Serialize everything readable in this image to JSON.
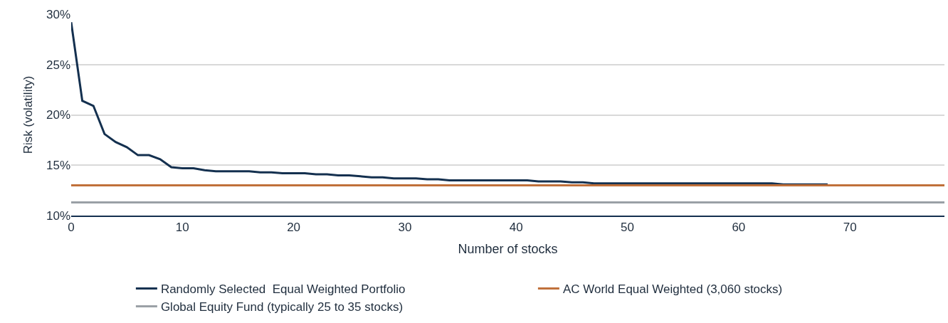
{
  "chart_data": {
    "type": "line",
    "xlabel": "Number of stocks",
    "ylabel": "Risk (volatility)",
    "xlim": [
      0,
      78.5
    ],
    "xticks": [
      0,
      10,
      20,
      30,
      40,
      50,
      60,
      70
    ],
    "ylim": [
      10,
      30
    ],
    "yticks": [
      {
        "value": 10,
        "label": "10%"
      },
      {
        "value": 15,
        "label": "15%"
      },
      {
        "value": 20,
        "label": "20%"
      },
      {
        "value": 25,
        "label": "25%"
      },
      {
        "value": 30,
        "label": "30%"
      }
    ],
    "grid": "y",
    "legend": "bottom",
    "marker": "none",
    "line_style": "solid",
    "series": [
      {
        "name": "Randomly Selected  Equal Weighted Portfolio",
        "color": "#14304f",
        "x": [
          0,
          1,
          2,
          3,
          4,
          5,
          6,
          7,
          8,
          9,
          10,
          11,
          12,
          13,
          16,
          17,
          18,
          19,
          21,
          22,
          23,
          24,
          25,
          26,
          27,
          28,
          29,
          31,
          32,
          33,
          34,
          41,
          42,
          44,
          45,
          46,
          47,
          63,
          64,
          68
        ],
        "values": [
          29.2,
          21.4,
          20.9,
          18.1,
          17.3,
          16.8,
          16.0,
          16.0,
          15.6,
          14.8,
          14.7,
          14.7,
          14.5,
          14.4,
          14.4,
          14.3,
          14.3,
          14.2,
          14.2,
          14.1,
          14.1,
          14.0,
          14.0,
          13.9,
          13.8,
          13.8,
          13.7,
          13.7,
          13.6,
          13.6,
          13.5,
          13.5,
          13.4,
          13.4,
          13.3,
          13.3,
          13.2,
          13.2,
          13.1,
          13.1
        ]
      },
      {
        "name": "AC World Equal Weighted (3,060 stocks)",
        "color": "#c0703a",
        "x": [
          0,
          78.5
        ],
        "values": [
          13.0,
          13.0
        ]
      },
      {
        "name": "Global Equity Fund (typically 25 to 35 stocks)",
        "color": "#9aa0a6",
        "x": [
          0,
          78.5
        ],
        "values": [
          11.3,
          11.3
        ]
      }
    ]
  }
}
